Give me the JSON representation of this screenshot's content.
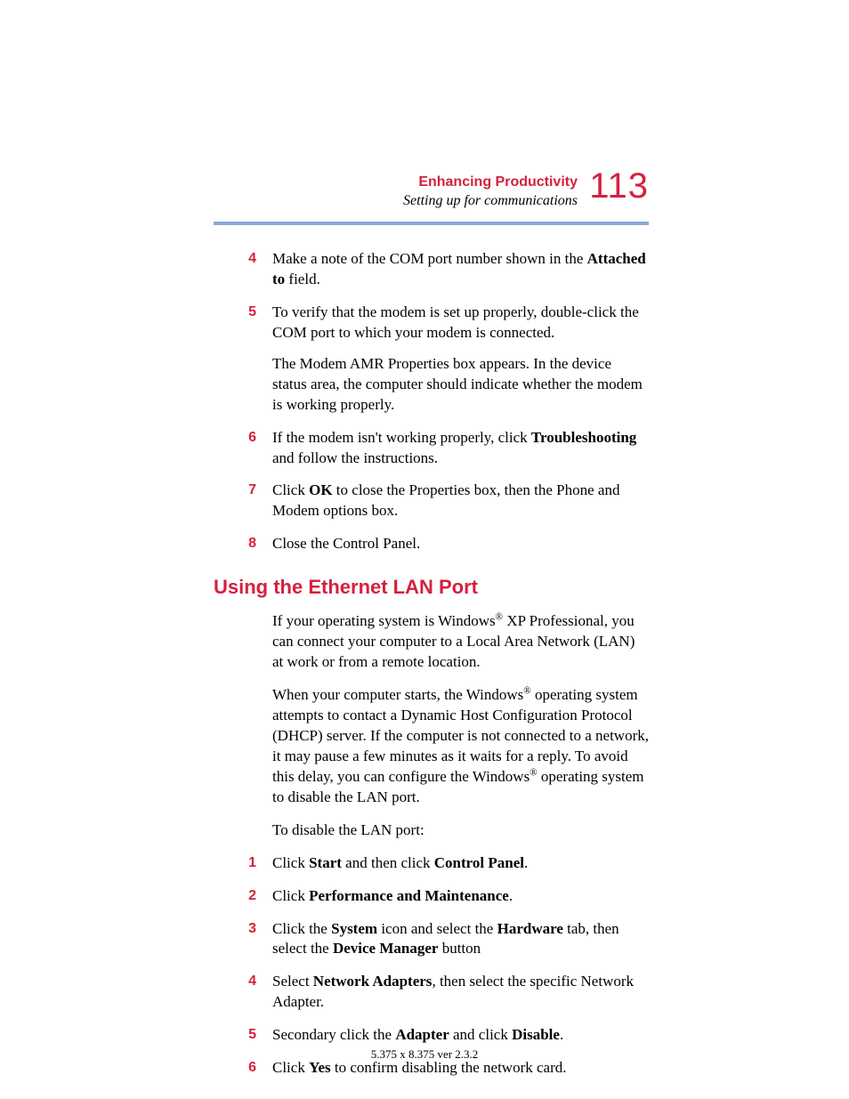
{
  "colors": {
    "accent": "#d4213d",
    "rule": "#8aa9d6",
    "text": "#000000",
    "background": "#ffffff"
  },
  "typography": {
    "body_font": "Times New Roman",
    "heading_font": "Arial",
    "body_size_pt": 12,
    "heading_size_pt": 16,
    "page_number_size_pt": 30
  },
  "header": {
    "chapter_title": "Enhancing Productivity",
    "section_subtitle": "Setting up for communications",
    "page_number": "113"
  },
  "steps_top": [
    {
      "num": "4",
      "paras": [
        "Make a note of the COM port number shown in the <b>Attached to</b> field."
      ]
    },
    {
      "num": "5",
      "paras": [
        "To verify that the modem is set up properly, double-click the COM port to which your modem is connected.",
        "The Modem AMR Properties box appears. In the device status area, the computer should indicate whether the modem is working properly."
      ]
    },
    {
      "num": "6",
      "paras": [
        "If the modem isn't working properly, click <b>Troubleshooting</b> and follow the instructions."
      ]
    },
    {
      "num": "7",
      "paras": [
        "Click <b>OK</b> to close the Properties box, then the Phone and Modem options box."
      ]
    },
    {
      "num": "8",
      "paras": [
        "Close the Control Panel."
      ]
    }
  ],
  "section_heading": "Using the Ethernet LAN Port",
  "body_paragraphs": [
    "If your operating system is Windows<sup>®</sup> XP Professional, you can connect your computer to a Local Area Network (LAN) at work or from a remote location.",
    "When your computer starts, the Windows<sup>®</sup> operating system attempts to contact a Dynamic Host Configuration Protocol (DHCP) server. If the computer is not connected to a network, it may pause a few minutes as it waits for a reply. To avoid this delay, you can configure the Windows<sup>®</sup> operating system to disable the LAN port.",
    "To disable the LAN port:"
  ],
  "steps_bottom": [
    {
      "num": "1",
      "paras": [
        "Click <b>Start</b> and then click <b>Control Panel</b>."
      ]
    },
    {
      "num": "2",
      "paras": [
        "Click <b>Performance and Maintenance</b>."
      ]
    },
    {
      "num": "3",
      "paras": [
        "Click the <b>System</b> icon and select the <b>Hardware</b> tab, then select the <b>Device Manager</b> button"
      ]
    },
    {
      "num": "4",
      "paras": [
        "Select <b>Network Adapters</b>, then select the specific Network Adapter."
      ]
    },
    {
      "num": "5",
      "paras": [
        "Secondary click the <b>Adapter</b> and click <b>Disable</b>."
      ]
    },
    {
      "num": "6",
      "paras": [
        "Click <b>Yes</b> to confirm disabling the network card."
      ]
    }
  ],
  "footer": {
    "version": "5.375 x 8.375 ver 2.3.2"
  }
}
